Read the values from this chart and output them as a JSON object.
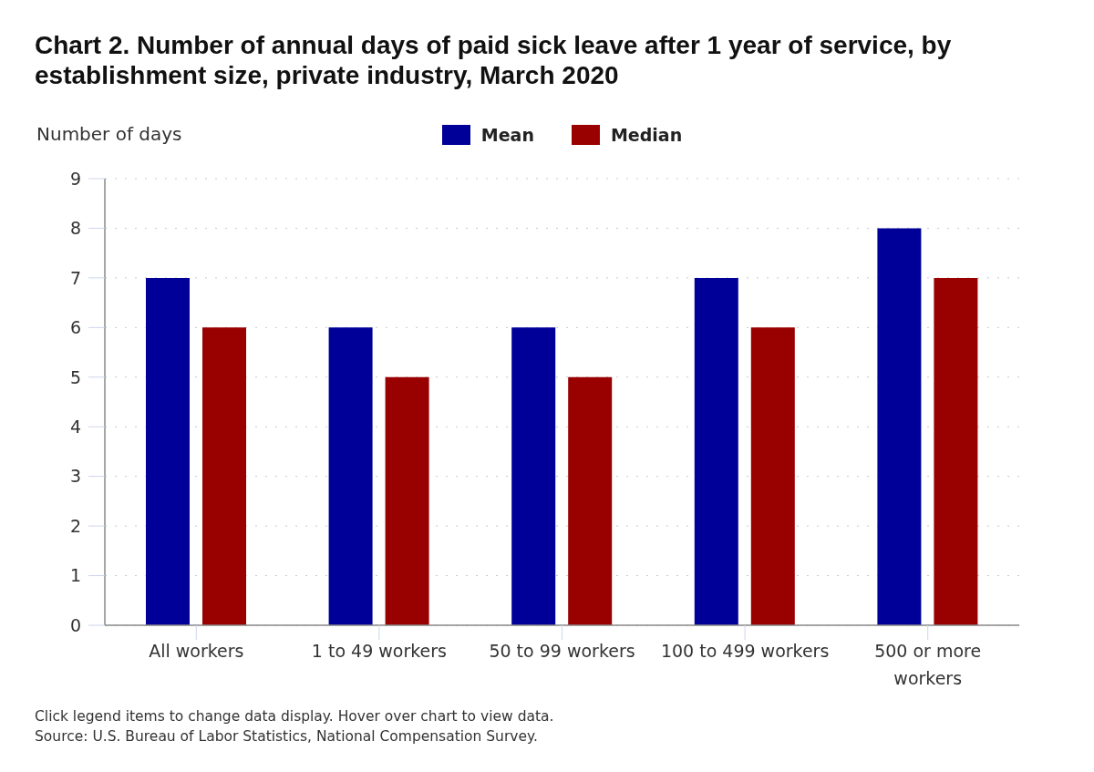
{
  "chart_data": {
    "type": "bar",
    "title": "Chart 2. Number of annual days of paid sick leave after 1 year of service, by establishment size, private industry, March 2020",
    "ylabel": "Number of days",
    "categories": [
      "All workers",
      "1 to 49 workers",
      "50 to 99 workers",
      "100 to 499 workers",
      "500 or more workers"
    ],
    "series": [
      {
        "name": "Mean",
        "color": "#000099",
        "values": [
          7,
          6,
          6,
          7,
          8
        ]
      },
      {
        "name": "Median",
        "color": "#990000",
        "values": [
          6,
          5,
          5,
          6,
          7
        ]
      }
    ],
    "ylim": [
      0,
      9
    ],
    "yticks": [
      0,
      1,
      2,
      3,
      4,
      5,
      6,
      7,
      8,
      9
    ],
    "grid": "y",
    "legend": "top",
    "annotations": [
      "Click legend items to change data display. Hover over chart to view data.",
      "Source: U.S. Bureau of Labor Statistics, National Compensation Survey."
    ]
  }
}
